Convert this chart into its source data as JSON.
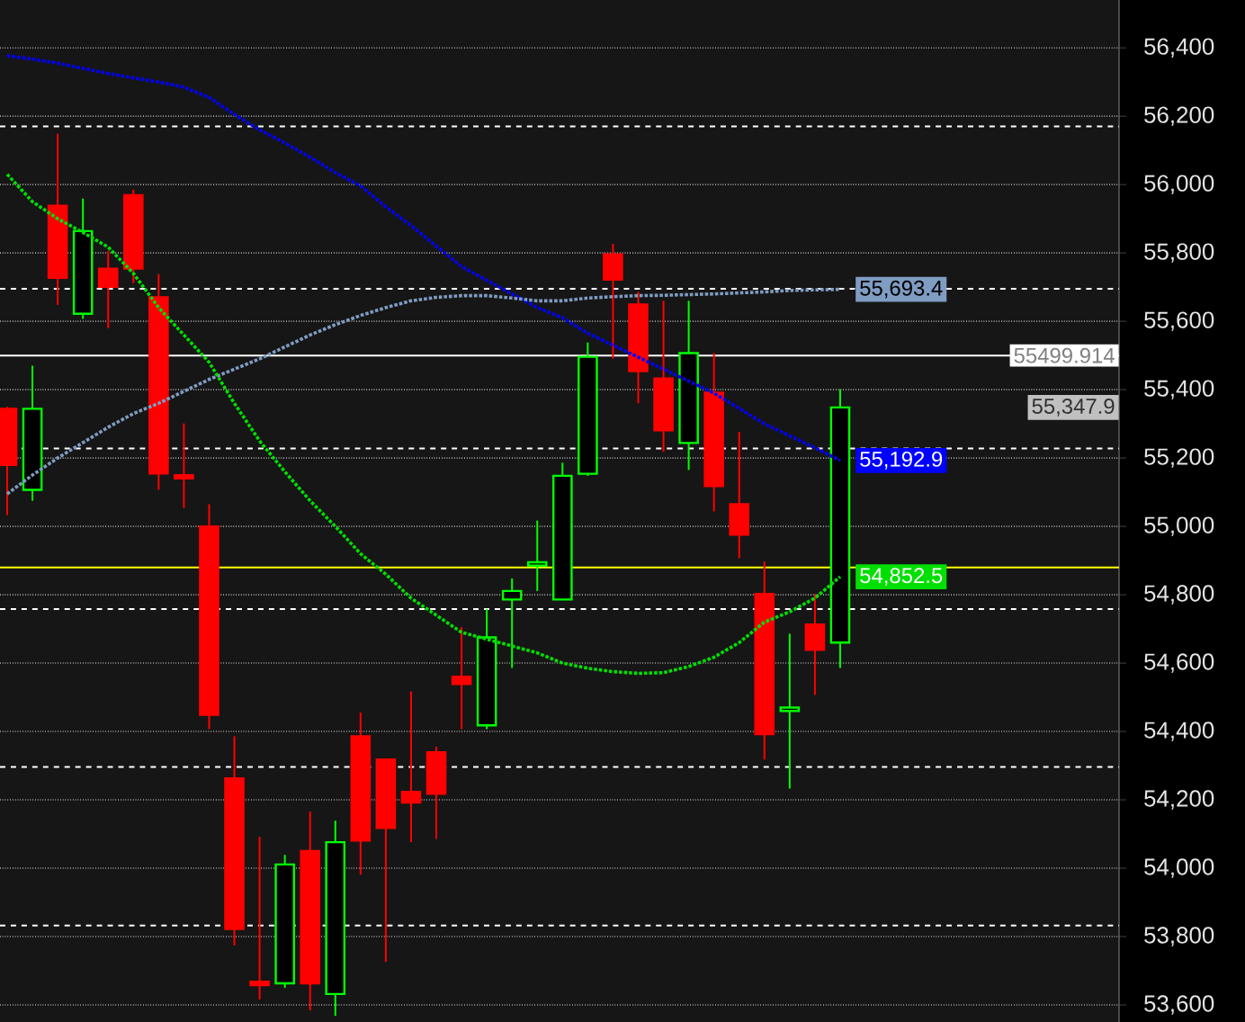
{
  "chart_data": {
    "type": "candlestick",
    "categories": [
      null,
      null,
      null,
      null,
      null,
      null,
      null,
      null,
      null,
      null,
      null,
      null,
      null,
      null,
      null,
      null,
      null,
      null,
      null,
      null,
      null,
      null,
      null,
      null,
      null,
      null,
      null,
      null,
      null,
      null,
      null,
      null,
      null,
      null
    ],
    "ohlc": [
      [
        55344,
        55350,
        55033,
        55180
      ],
      [
        55107,
        55470,
        55075,
        55344
      ],
      [
        55938,
        56149,
        55648,
        55727
      ],
      [
        55622,
        55959,
        55607,
        55864
      ],
      [
        55754,
        55806,
        55580,
        55701
      ],
      [
        55969,
        55985,
        55712,
        55754
      ],
      [
        55670,
        55738,
        55107,
        55155
      ],
      [
        55150,
        55301,
        55054,
        55140
      ],
      [
        55000,
        55065,
        54407,
        54449
      ],
      [
        54263,
        54386,
        53774,
        53822
      ],
      [
        53668,
        54092,
        53616,
        53658
      ],
      [
        53663,
        54039,
        53650,
        54011
      ],
      [
        54050,
        54166,
        53584,
        53663
      ],
      [
        53632,
        54139,
        53568,
        54076
      ],
      [
        54386,
        54455,
        53981,
        54081
      ],
      [
        54318,
        54318,
        53726,
        54118
      ],
      [
        54223,
        54517,
        54076,
        54192
      ],
      [
        54339,
        54355,
        54086,
        54218
      ],
      [
        54560,
        54705,
        54407,
        54539
      ],
      [
        54418,
        54758,
        54407,
        54675
      ],
      [
        54786,
        54848,
        54586,
        54811
      ],
      [
        54885,
        55017,
        54811,
        54895
      ],
      [
        54786,
        55186,
        54786,
        55148
      ],
      [
        55154,
        55538,
        55148,
        55496
      ],
      [
        55796,
        55827,
        55491,
        55722
      ],
      [
        55649,
        55686,
        55360,
        55454
      ],
      [
        55433,
        55660,
        55218,
        55281
      ],
      [
        55244,
        55660,
        55165,
        55507
      ],
      [
        55391,
        55507,
        55044,
        55118
      ],
      [
        55065,
        55276,
        54907,
        54976
      ],
      [
        54802,
        54897,
        54318,
        54392
      ],
      [
        54460,
        54686,
        54233,
        54470
      ],
      [
        54713,
        54802,
        54507,
        54639
      ],
      [
        54660,
        55401,
        54586,
        55347.9
      ]
    ],
    "colors": [
      "#ff0000",
      "#00ff00",
      "#ff0000",
      "#00ff00",
      "#ff0000",
      "#ff0000",
      "#ff0000",
      "#ff0000",
      "#ff0000",
      "#ff0000",
      "#ff0000",
      "#00ff00",
      "#ff0000",
      "#00ff00",
      "#ff0000",
      "#ff0000",
      "#ff0000",
      "#ff0000",
      "#ff0000",
      "#00ff00",
      "#00ff00",
      "#00ff00",
      "#00ff00",
      "#00ff00",
      "#ff0000",
      "#ff0000",
      "#ff0000",
      "#00ff00",
      "#ff0000",
      "#ff0000",
      "#ff0000",
      "#00ff00",
      "#ff0000",
      "#00ff00"
    ],
    "series": [
      {
        "type": "line",
        "color": "#0000ff",
        "line_style": "dotted",
        "values": [
          56377,
          56367,
          56355,
          56340,
          56325,
          56312,
          56300,
          56285,
          56255,
          56205,
          56160,
          56122,
          56080,
          56035,
          55996,
          55935,
          55880,
          55820,
          55760,
          55720,
          55680,
          55640,
          55610,
          55565,
          55530,
          55495,
          55460,
          55425,
          55390,
          55345,
          55300,
          55265,
          55230,
          55192.9
        ],
        "value_labels": [
          null,
          null,
          null,
          null,
          null,
          null,
          null,
          null,
          null,
          null,
          null,
          null,
          null,
          null,
          null,
          null,
          null,
          null,
          null,
          null,
          null,
          null,
          null,
          null,
          null,
          null,
          null,
          null,
          null,
          null,
          null,
          null,
          null,
          "55,192.9"
        ]
      },
      {
        "type": "line",
        "color": "#7f9cc2",
        "line_style": "dotted",
        "values": [
          55095,
          55150,
          55200,
          55245,
          55290,
          55330,
          55360,
          55395,
          55430,
          55460,
          55490,
          55525,
          55560,
          55590,
          55617,
          55640,
          55660,
          55670,
          55675,
          55675,
          55668,
          55660,
          55660,
          55668,
          55672,
          55675,
          55676,
          55678,
          55680,
          55683,
          55686,
          55690,
          55692,
          55693.4
        ],
        "value_labels": [
          null,
          null,
          null,
          null,
          null,
          null,
          null,
          null,
          null,
          null,
          null,
          null,
          null,
          null,
          null,
          null,
          null,
          null,
          null,
          null,
          null,
          null,
          null,
          null,
          null,
          null,
          null,
          null,
          null,
          null,
          null,
          null,
          null,
          "55,693.4"
        ]
      },
      {
        "type": "line",
        "color": "#00e000",
        "line_style": "dotted",
        "values": [
          56030,
          55950,
          55900,
          55860,
          55817,
          55740,
          55640,
          55560,
          55480,
          55360,
          55250,
          55160,
          55075,
          55000,
          54920,
          54860,
          54790,
          54740,
          54690,
          54670,
          54650,
          54630,
          54600,
          54585,
          54575,
          54570,
          54572,
          54590,
          54617,
          54660,
          54720,
          54750,
          54790,
          54852.5
        ],
        "value_labels": [
          null,
          null,
          null,
          null,
          null,
          null,
          null,
          null,
          null,
          null,
          null,
          null,
          null,
          null,
          null,
          null,
          null,
          null,
          null,
          null,
          null,
          null,
          null,
          null,
          null,
          null,
          null,
          null,
          null,
          null,
          null,
          null,
          null,
          "54,852.5"
        ]
      }
    ],
    "ylim": [
      53550,
      56540
    ],
    "yticks": [
      {
        "value": 53600,
        "label": "53,600"
      },
      {
        "value": 53800,
        "label": "53,800"
      },
      {
        "value": 54000,
        "label": "54,000"
      },
      {
        "value": 54200,
        "label": "54,200"
      },
      {
        "value": 54400,
        "label": "54,400"
      },
      {
        "value": 54600,
        "label": "54,600"
      },
      {
        "value": 54800,
        "label": "54,800"
      },
      {
        "value": 55000,
        "label": "55,000"
      },
      {
        "value": 55200,
        "label": "55,200"
      },
      {
        "value": 55400,
        "label": "55,400"
      },
      {
        "value": 55600,
        "label": "55,600"
      },
      {
        "value": 55800,
        "label": "55,800"
      },
      {
        "value": 56000,
        "label": "56,000"
      },
      {
        "value": 56200,
        "label": "56,200"
      },
      {
        "value": 56400,
        "label": "56,400"
      }
    ],
    "ref_lines": [
      {
        "axis": "y",
        "value": 54880,
        "color": "#ffff00",
        "line_style": "solid"
      },
      {
        "axis": "y",
        "value": 56170,
        "color": "#ffffff",
        "line_style": "dashed"
      },
      {
        "axis": "y",
        "value": 55695,
        "color": "#ffffff",
        "line_style": "dashed"
      },
      {
        "axis": "y",
        "value": 55228,
        "color": "#ffffff",
        "line_style": "dashed"
      },
      {
        "axis": "y",
        "value": 54758,
        "color": "#ffffff",
        "line_style": "dashed"
      },
      {
        "axis": "y",
        "value": 54296,
        "color": "#ffffff",
        "line_style": "dashed"
      },
      {
        "axis": "y",
        "value": 53832,
        "color": "#ffffff",
        "line_style": "dashed"
      },
      {
        "axis": "y",
        "value": 55499.914,
        "color": "#ffffff",
        "line_style": "solid",
        "label": "55499.914"
      }
    ],
    "annotations": [
      "55,347.9"
    ],
    "grid": "y"
  }
}
